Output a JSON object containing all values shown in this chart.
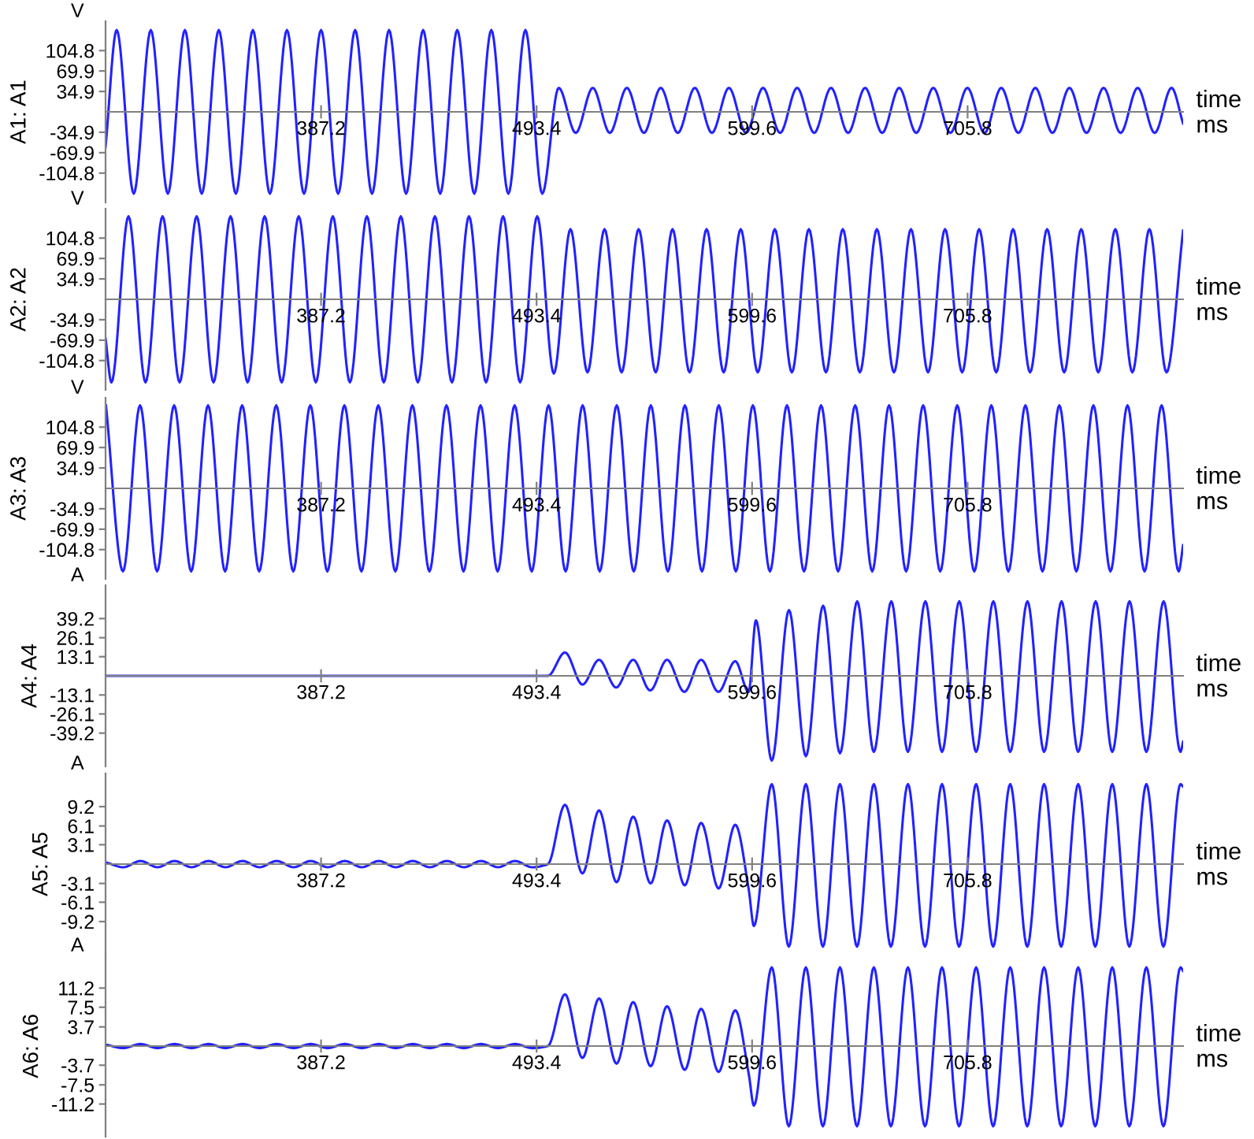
{
  "chart_data": [
    {
      "type": "line",
      "ylabel": "A1: A1",
      "annotations": [
        "V",
        "time",
        "ms"
      ],
      "xlim": [
        281.0,
        812.0
      ],
      "xticks": [
        387.2,
        493.4,
        599.6,
        705.8
      ],
      "ylim": [
        -155,
        155
      ],
      "yticks": [
        -104.8,
        -69.9,
        -34.9,
        34.9,
        69.9,
        104.8
      ],
      "series": [
        {
          "color": "#2222ff",
          "x": [
            281.0,
            286.5,
            294.9,
            303.3,
            311.7,
            320.1,
            328.4,
            336.8,
            345.2,
            353.6,
            362.0,
            370.4,
            378.8,
            387.2,
            395.6,
            404.0,
            412.3,
            420.7,
            429.1,
            437.5,
            445.9,
            454.3,
            462.7,
            471.1,
            479.5,
            487.9,
            496.2,
            504.3,
            512.7,
            521.1,
            529.5,
            537.9,
            546.3,
            554.6,
            563.0,
            571.4,
            579.8,
            588.2,
            596.6,
            605.0,
            613.4,
            621.8,
            630.2,
            638.5,
            646.9,
            655.3,
            663.7,
            672.1,
            680.5,
            688.9,
            697.3,
            705.7,
            714.1,
            722.4,
            730.8,
            739.2,
            747.6,
            756.0,
            764.4,
            772.8,
            781.2,
            789.6,
            798.0,
            806.3,
            812.0
          ],
          "values": [
            -60,
            140,
            -140,
            140,
            -140,
            140,
            -140,
            140,
            -140,
            140,
            -140,
            140,
            -140,
            140,
            -140,
            140,
            -140,
            140,
            -140,
            140,
            -140,
            140,
            -140,
            140,
            -140,
            140,
            -140,
            41,
            -36,
            41,
            -36,
            41,
            -36,
            41,
            -36,
            41,
            -36,
            41,
            -36,
            41,
            -36,
            41,
            -36,
            41,
            -36,
            41,
            -36,
            41,
            -36,
            41,
            -36,
            41,
            -36,
            41,
            -36,
            41,
            -36,
            41,
            -36,
            41,
            -36,
            41,
            -36,
            41,
            -20
          ]
        }
      ]
    },
    {
      "type": "line",
      "ylabel": "A2: A2",
      "annotations": [
        "V",
        "time",
        "ms"
      ],
      "xlim": [
        281.0,
        812.0
      ],
      "xticks": [
        387.2,
        493.4,
        599.6,
        705.8
      ],
      "ylim": [
        -155,
        155
      ],
      "yticks": [
        -104.8,
        -69.9,
        -34.9,
        34.9,
        69.9,
        104.8
      ],
      "series": [
        {
          "color": "#2222ff",
          "x": [
            281.0,
            283.9,
            292.3,
            300.7,
            309.1,
            317.5,
            325.9,
            334.2,
            342.6,
            351.0,
            359.4,
            367.8,
            376.2,
            384.6,
            393.0,
            401.4,
            409.8,
            418.1,
            426.5,
            434.9,
            443.3,
            451.7,
            460.1,
            468.5,
            476.9,
            485.3,
            493.7,
            501.9,
            510.1,
            518.5,
            526.9,
            535.3,
            543.7,
            552.1,
            560.4,
            568.8,
            577.2,
            585.6,
            594.0,
            602.4,
            610.8,
            619.2,
            627.6,
            636.0,
            644.3,
            652.7,
            661.1,
            669.5,
            677.9,
            686.3,
            694.7,
            703.1,
            711.5,
            719.9,
            728.2,
            736.6,
            745.0,
            753.4,
            761.8,
            770.2,
            778.6,
            787.0,
            795.4,
            803.8,
            812.0
          ],
          "values": [
            -67,
            -142,
            142,
            -142,
            142,
            -142,
            142,
            -142,
            142,
            -142,
            142,
            -142,
            142,
            -142,
            142,
            -142,
            142,
            -142,
            142,
            -142,
            142,
            -142,
            142,
            -142,
            142,
            -142,
            142,
            -127,
            120,
            -125,
            120,
            -125,
            120,
            -125,
            120,
            -125,
            120,
            -125,
            120,
            -125,
            120,
            -125,
            120,
            -125,
            120,
            -125,
            120,
            -125,
            120,
            -125,
            120,
            -125,
            120,
            -125,
            120,
            -125,
            120,
            -125,
            120,
            -125,
            120,
            -125,
            120,
            -125,
            118
          ]
        }
      ]
    },
    {
      "type": "line",
      "ylabel": "A3: A3",
      "annotations": [
        "V",
        "time",
        "ms"
      ],
      "xlim": [
        281.0,
        812.0
      ],
      "xticks": [
        387.2,
        493.4,
        599.6,
        705.8
      ],
      "ylim": [
        -155,
        155
      ],
      "yticks": [
        -104.8,
        -69.9,
        -34.9,
        34.9,
        69.9,
        104.8
      ],
      "series": [
        {
          "color": "#2222ff",
          "x": [
            281.2,
            289.6,
            298.0,
            306.4,
            314.8,
            323.2,
            331.5,
            339.9,
            348.3,
            356.7,
            365.1,
            373.5,
            381.9,
            390.3,
            398.7,
            407.1,
            415.4,
            423.8,
            432.2,
            440.6,
            449.0,
            457.4,
            465.8,
            474.2,
            482.6,
            491.0,
            499.3,
            507.7,
            516.1,
            524.5,
            532.9,
            541.3,
            549.7,
            558.1,
            566.5,
            574.9,
            583.2,
            591.6,
            600.0,
            608.4,
            616.8,
            625.2,
            633.6,
            642.0,
            650.4,
            658.8,
            667.1,
            675.5,
            683.9,
            692.3,
            700.7,
            709.1,
            717.5,
            725.9,
            734.3,
            742.7,
            751.0,
            759.4,
            767.8,
            776.2,
            784.6,
            793.0,
            801.4,
            809.8,
            812.0
          ],
          "values": [
            142,
            -142,
            142,
            -142,
            142,
            -142,
            142,
            -142,
            142,
            -142,
            142,
            -142,
            142,
            -142,
            142,
            -142,
            142,
            -142,
            142,
            -142,
            142,
            -142,
            142,
            -142,
            142,
            -142,
            142,
            -142,
            142,
            -142,
            142,
            -142,
            142,
            -142,
            142,
            -142,
            142,
            -142,
            142,
            -142,
            142,
            -142,
            142,
            -142,
            142,
            -142,
            142,
            -142,
            142,
            -142,
            142,
            -142,
            142,
            -142,
            142,
            -142,
            142,
            -142,
            142,
            -142,
            142,
            -142,
            142,
            -142,
            -97
          ]
        }
      ]
    },
    {
      "type": "line",
      "ylabel": "A4: A4",
      "annotations": [
        "A",
        "time",
        "ms"
      ],
      "xlim": [
        281.0,
        812.0
      ],
      "xticks": [
        387.2,
        493.4,
        599.6,
        705.8
      ],
      "ylim": [
        -62,
        62
      ],
      "yticks": [
        -39.2,
        -26.1,
        -13.1,
        13.1,
        26.1,
        39.2
      ],
      "series": [
        {
          "color": "#2222ff",
          "x": [
            281.0,
            499.0,
            507.4,
            516.0,
            524.2,
            532.6,
            541.0,
            549.4,
            557.7,
            566.2,
            574.5,
            583.0,
            591.3,
            597.9,
            601.5,
            609.3,
            617.8,
            626.1,
            634.6,
            642.9,
            651.4,
            659.6,
            668.2,
            676.4,
            685.0,
            693.2,
            701.7,
            710.0,
            718.5,
            726.8,
            735.3,
            743.5,
            752.1,
            760.3,
            768.9,
            777.1,
            785.6,
            793.9,
            802.4,
            810.7,
            812.0
          ],
          "values": [
            0,
            0,
            16,
            -6,
            11,
            -8,
            11,
            -10,
            11,
            -11,
            11,
            -11,
            10,
            -11,
            38,
            -58,
            45,
            -55,
            48,
            -53,
            51,
            -52,
            51,
            -52,
            51,
            -52,
            51,
            -52,
            51,
            -52,
            51,
            -52,
            51,
            -52,
            51,
            -52,
            51,
            -52,
            51,
            -52,
            -45
          ]
        }
      ]
    },
    {
      "type": "line",
      "ylabel": "A5: A5",
      "annotations": [
        "A",
        "time",
        "ms"
      ],
      "xlim": [
        281.0,
        812.0
      ],
      "xticks": [
        387.2,
        493.4,
        599.6,
        705.8
      ],
      "ylim": [
        -14.5,
        14.5
      ],
      "yticks": [
        -9.2,
        -6.1,
        -3.1,
        3.1,
        6.1,
        9.2
      ],
      "series": [
        {
          "color": "#2222ff",
          "x": [
            281.0,
            289.8,
            298.2,
            306.6,
            315.0,
            323.4,
            331.8,
            340.1,
            348.5,
            356.9,
            365.3,
            373.7,
            382.1,
            390.5,
            398.9,
            407.3,
            415.7,
            424.0,
            432.4,
            440.8,
            449.2,
            457.6,
            466.0,
            474.4,
            482.8,
            491.2,
            499.0,
            507.4,
            516.0,
            524.2,
            532.8,
            541.0,
            549.6,
            557.7,
            566.4,
            574.5,
            583.1,
            591.3,
            598.0,
            600.5,
            609.3,
            617.7,
            626.1,
            634.5,
            642.9,
            651.3,
            659.6,
            668.0,
            676.4,
            684.8,
            693.2,
            701.6,
            710.0,
            718.4,
            726.8,
            735.2,
            743.5,
            751.9,
            760.3,
            768.7,
            777.1,
            785.5,
            793.9,
            802.3,
            810.7,
            812.0
          ],
          "values": [
            0.3,
            -0.5,
            0.5,
            -0.5,
            0.5,
            -0.5,
            0.5,
            -0.5,
            0.5,
            -0.5,
            0.5,
            -0.5,
            0.5,
            -0.5,
            0.5,
            -0.5,
            0.5,
            -0.5,
            0.5,
            -0.5,
            0.5,
            -0.5,
            0.5,
            -0.5,
            0.5,
            -0.5,
            0.0,
            9.5,
            -1.5,
            8.6,
            -2.9,
            7.6,
            -3.1,
            7.0,
            -3.4,
            6.6,
            -3.9,
            6.3,
            -4.2,
            -9.9,
            12.8,
            -13.2,
            12.8,
            -13.2,
            12.8,
            -13.2,
            12.8,
            -13.2,
            12.8,
            -13.2,
            12.8,
            -13.2,
            12.8,
            -13.2,
            12.8,
            -13.2,
            12.8,
            -13.2,
            12.8,
            -13.2,
            12.8,
            -13.2,
            12.8,
            -13.2,
            12.8,
            12.4
          ]
        }
      ]
    },
    {
      "type": "line",
      "ylabel": "A6: A6",
      "annotations": [
        "A",
        "time",
        "ms"
      ],
      "xlim": [
        281.0,
        812.0
      ],
      "xticks": [
        387.2,
        493.4,
        599.6,
        705.8
      ],
      "ylim": [
        -17.5,
        17.5
      ],
      "yticks": [
        -11.2,
        -7.5,
        -3.7,
        3.7,
        7.5,
        11.2
      ],
      "series": [
        {
          "color": "#2222ff",
          "x": [
            281.0,
            289.8,
            298.2,
            306.6,
            315.0,
            323.4,
            331.8,
            340.1,
            348.5,
            356.9,
            365.3,
            373.7,
            382.1,
            390.5,
            398.9,
            407.3,
            415.7,
            424.0,
            432.4,
            440.8,
            449.2,
            457.6,
            466.0,
            474.4,
            482.8,
            491.2,
            499.0,
            507.4,
            516.0,
            524.2,
            532.8,
            541.0,
            549.6,
            557.7,
            566.4,
            574.5,
            583.1,
            591.3,
            598.0,
            600.5,
            609.3,
            617.7,
            626.1,
            634.5,
            642.9,
            651.3,
            659.6,
            668.0,
            676.4,
            684.8,
            693.2,
            701.6,
            710.0,
            718.4,
            726.8,
            735.2,
            743.5,
            751.9,
            760.3,
            768.7,
            777.1,
            785.5,
            793.9,
            802.3,
            810.7,
            812.0
          ],
          "values": [
            0.3,
            -0.4,
            0.4,
            -0.4,
            0.4,
            -0.4,
            0.4,
            -0.4,
            0.4,
            -0.4,
            0.4,
            -0.4,
            0.4,
            -0.4,
            0.4,
            -0.4,
            0.4,
            -0.4,
            0.4,
            -0.4,
            0.4,
            -0.4,
            0.4,
            -0.4,
            0.4,
            -0.4,
            0.0,
            10.0,
            -2.3,
            9.2,
            -3.4,
            8.5,
            -3.9,
            7.7,
            -4.6,
            7.2,
            -5.0,
            6.9,
            -5.5,
            -11.5,
            15.2,
            -15.5,
            15.2,
            -15.5,
            15.2,
            -15.5,
            15.2,
            -15.5,
            15.2,
            -15.5,
            15.2,
            -15.5,
            15.2,
            -15.5,
            15.2,
            -15.5,
            15.2,
            -15.5,
            15.2,
            -15.5,
            15.2,
            -15.5,
            15.2,
            -15.5,
            15.2,
            14.5
          ]
        }
      ]
    }
  ]
}
